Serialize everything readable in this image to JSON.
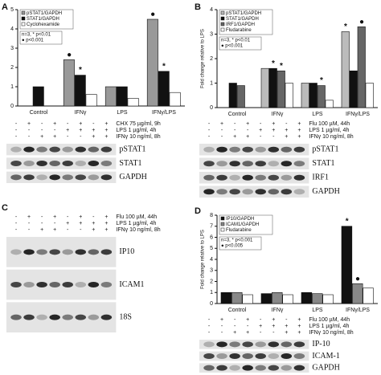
{
  "panels": [
    "A",
    "B",
    "C",
    "D"
  ],
  "chart_data": [
    {
      "type": "bar",
      "categories": [
        "Control",
        "IFNγ",
        "LPS",
        "IFNγ/LPS"
      ],
      "ylim": [
        0,
        5
      ],
      "yticks": [
        0,
        1,
        2,
        3,
        4,
        5
      ],
      "annotations": [
        "n=3, * p<0.01",
        "● p<0.001"
      ],
      "series": [
        {
          "name": "pSTAT1/GAPDH",
          "color": "#999999",
          "values": [
            null,
            2.4,
            1.0,
            4.5
          ],
          "markers": [
            null,
            "●",
            null,
            "●"
          ]
        },
        {
          "name": "STAT1/GAPDH",
          "color": "#111111",
          "values": [
            1.0,
            1.6,
            1.0,
            1.8
          ],
          "markers": [
            null,
            "*",
            null,
            "*"
          ]
        },
        {
          "name": "Cyclohexamide",
          "color": "#ffffff",
          "values": [
            null,
            0.6,
            0.4,
            0.7
          ],
          "markers": [
            null,
            null,
            null,
            null
          ]
        }
      ]
    },
    {
      "type": "bar",
      "categories": [
        "Control",
        "IFNγ",
        "LPS",
        "IFNγ/LPS"
      ],
      "ylabel": "Fold change relative to LPS",
      "ylim": [
        0,
        4
      ],
      "yticks": [
        0,
        1,
        2,
        3,
        4
      ],
      "annotations": [
        "n=3, * p<0.01",
        "● p<0.001"
      ],
      "series": [
        {
          "name": "pSTAT1/GAPDH",
          "color": "#bbbbbb",
          "values": [
            null,
            1.6,
            1.0,
            3.1
          ],
          "markers": [
            null,
            null,
            null,
            "*"
          ]
        },
        {
          "name": "STAT1/GAPDH",
          "color": "#111111",
          "values": [
            1.0,
            1.6,
            1.0,
            1.5
          ],
          "markers": [
            null,
            "*",
            null,
            null
          ]
        },
        {
          "name": "IRF1/GAPDH",
          "color": "#666666",
          "values": [
            0.9,
            1.5,
            0.9,
            3.3
          ],
          "markers": [
            null,
            "*",
            "*",
            "●"
          ]
        },
        {
          "name": "Fludarabine",
          "color": "#ffffff",
          "values": [
            null,
            1.0,
            0.3,
            1.0
          ],
          "markers": [
            null,
            null,
            null,
            null
          ]
        }
      ]
    },
    {
      "type": "bar",
      "categories": [
        "Control",
        "IFNγ",
        "LPS",
        "IFNγ/LPS"
      ],
      "ylabel": "Fold change relative to LPS",
      "ylim": [
        0,
        8
      ],
      "yticks": [
        0,
        1,
        2,
        3,
        4,
        5,
        6,
        7,
        8
      ],
      "annotations": [
        "n=3, * p<0.001",
        "● p<0.005"
      ],
      "series": [
        {
          "name": "IP10/GAPDH",
          "color": "#111111",
          "values": [
            1.0,
            0.9,
            1.0,
            7.0
          ],
          "markers": [
            null,
            null,
            null,
            "*"
          ]
        },
        {
          "name": "ICAM1/GAPDH",
          "color": "#888888",
          "values": [
            1.0,
            1.0,
            0.9,
            1.8
          ],
          "markers": [
            null,
            null,
            null,
            "●"
          ]
        },
        {
          "name": "Fludarabine",
          "color": "#ffffff",
          "values": [
            0.8,
            0.8,
            0.8,
            1.4
          ],
          "markers": [
            null,
            null,
            null,
            null
          ]
        }
      ]
    }
  ],
  "blots": [
    {
      "conditions": [
        {
          "label": "CHX 75 µg/ml, 9h",
          "signs": [
            "-",
            "+",
            "-",
            "+",
            "-",
            "+",
            "-",
            "+"
          ]
        },
        {
          "label": "LPS 1 µg/ml, 4h",
          "signs": [
            "-",
            "-",
            "-",
            "-",
            "+",
            "+",
            "+",
            "+"
          ]
        },
        {
          "label": "IFNγ 10 ng/ml, 8h",
          "signs": [
            "-",
            "-",
            "+",
            "+",
            "-",
            "-",
            "+",
            "+"
          ]
        }
      ],
      "bands": [
        "pSTAT1",
        "STAT1",
        "GAPDH"
      ]
    },
    {
      "conditions": [
        {
          "label": "Flu 100 µM, 44h",
          "signs": [
            "-",
            "+",
            "-",
            "+",
            "-",
            "+",
            "-",
            "+"
          ]
        },
        {
          "label": "LPS 1 µg/ml, 4h",
          "signs": [
            "-",
            "-",
            "-",
            "-",
            "+",
            "+",
            "+",
            "+"
          ]
        },
        {
          "label": "IFNγ 10 ng/ml, 8h",
          "signs": [
            "-",
            "-",
            "+",
            "+",
            "-",
            "-",
            "+",
            "+"
          ]
        }
      ],
      "bands": [
        "pSTAT1",
        "STAT1",
        "IRF1",
        "GAPDH"
      ]
    },
    {
      "conditions": [
        {
          "label": "Flu 100 µM, 44h",
          "signs": [
            "-",
            "+",
            "-",
            "+",
            "-",
            "+",
            "-",
            "+"
          ]
        },
        {
          "label": "LPS 1 µg/ml, 4h",
          "signs": [
            "-",
            "-",
            "-",
            "-",
            "+",
            "+",
            "+",
            "+"
          ]
        },
        {
          "label": "IFNγ 10 ng/ml, 8h",
          "signs": [
            "-",
            "-",
            "+",
            "+",
            "-",
            "-",
            "+",
            "+"
          ]
        }
      ],
      "bands": [
        "IP10",
        "ICAM1",
        "18S"
      ]
    },
    {
      "conditions": [
        {
          "label": "Flu 100 µM, 44h",
          "signs": [
            "-",
            "+",
            "-",
            "+",
            "-",
            "+",
            "-",
            "+"
          ]
        },
        {
          "label": "LPS 1 µg/ml, 4h",
          "signs": [
            "-",
            "-",
            "-",
            "-",
            "+",
            "+",
            "+",
            "+"
          ]
        },
        {
          "label": "IFNγ 10 ng/ml, 8h",
          "signs": [
            "-",
            "-",
            "+",
            "+",
            "-",
            "-",
            "+",
            "+"
          ]
        }
      ],
      "bands": [
        "IP-10",
        "ICAM-1",
        "GAPDH"
      ]
    }
  ]
}
